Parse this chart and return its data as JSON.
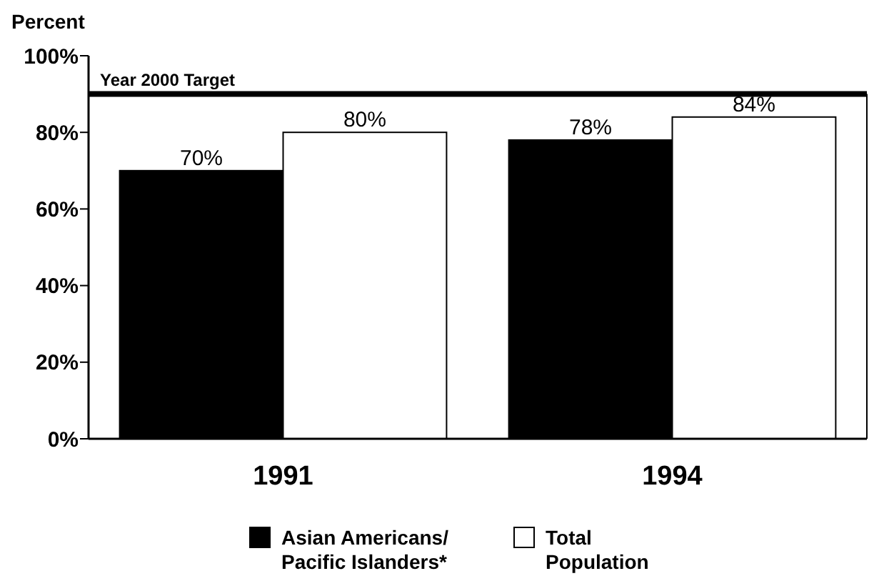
{
  "chart_data": {
    "type": "bar",
    "ylabel": "Percent",
    "categories": [
      "1991",
      "1994"
    ],
    "series": [
      {
        "name": "Asian Americans/ Pacific Islanders*",
        "color": "#000000",
        "values": [
          70,
          78
        ],
        "value_labels": [
          "70%",
          "78%"
        ]
      },
      {
        "name": "Total Population",
        "color": "#ffffff",
        "values": [
          80,
          84
        ],
        "value_labels": [
          "80%",
          "84%"
        ]
      }
    ],
    "ylim": [
      0,
      100
    ],
    "yticks": [
      {
        "value": 0,
        "label": "0%"
      },
      {
        "value": 20,
        "label": "20%"
      },
      {
        "value": 40,
        "label": "40%"
      },
      {
        "value": 60,
        "label": "60%"
      },
      {
        "value": 80,
        "label": "80%"
      },
      {
        "value": 100,
        "label": "100%"
      }
    ],
    "ref_lines": [
      {
        "axis": "y",
        "value": 90,
        "label": "Year 2000 Target",
        "color": "#000000"
      }
    ],
    "grid": false,
    "legend": "bottom"
  }
}
